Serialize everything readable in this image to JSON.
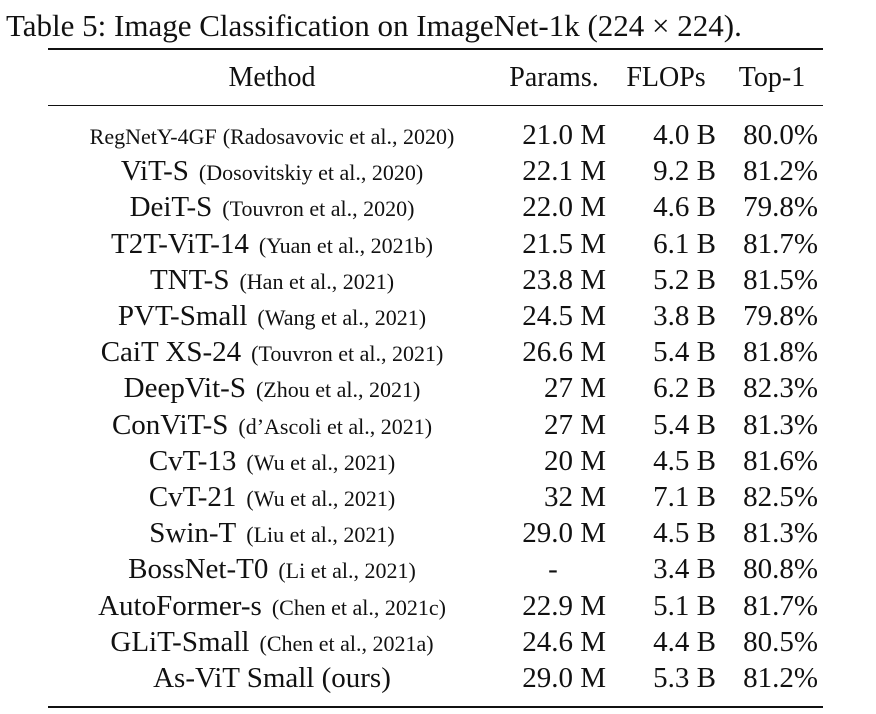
{
  "caption": "Table 5: Image Classification on ImageNet-1k (224 × 224).",
  "headers": {
    "method": "Method",
    "params": "Params.",
    "flops": "FLOPs",
    "top1": "Top-1"
  },
  "rows": [
    {
      "name": "RegNetY-4GF",
      "cite": "(Radosavovic et al., 2020)",
      "params": "21.0 M",
      "flops": "4.0 B",
      "top1": "80.0%"
    },
    {
      "name": "ViT-S",
      "cite": "(Dosovitskiy et al., 2020)",
      "params": "22.1 M",
      "flops": "9.2 B",
      "top1": "81.2%"
    },
    {
      "name": "DeiT-S",
      "cite": "(Touvron et al., 2020)",
      "params": "22.0 M",
      "flops": "4.6 B",
      "top1": "79.8%"
    },
    {
      "name": "T2T-ViT-14",
      "cite": "(Yuan et al., 2021b)",
      "params": "21.5 M",
      "flops": "6.1 B",
      "top1": "81.7%"
    },
    {
      "name": "TNT-S",
      "cite": "(Han et al., 2021)",
      "params": "23.8 M",
      "flops": "5.2 B",
      "top1": "81.5%"
    },
    {
      "name": "PVT-Small",
      "cite": "(Wang et al., 2021)",
      "params": "24.5 M",
      "flops": "3.8 B",
      "top1": "79.8%"
    },
    {
      "name": "CaiT XS-24",
      "cite": "(Touvron et al., 2021)",
      "params": "26.6 M",
      "flops": "5.4 B",
      "top1": "81.8%"
    },
    {
      "name": "DeepVit-S",
      "cite": "(Zhou et al., 2021)",
      "params": "27 M",
      "flops": "6.2 B",
      "top1": "82.3%"
    },
    {
      "name": "ConViT-S",
      "cite": "(d’Ascoli et al., 2021)",
      "params": "27 M",
      "flops": "5.4 B",
      "top1": "81.3%"
    },
    {
      "name": "CvT-13",
      "cite": "(Wu et al., 2021)",
      "params": "20 M",
      "flops": "4.5 B",
      "top1": "81.6%"
    },
    {
      "name": "CvT-21",
      "cite": "(Wu et al., 2021)",
      "params": "32 M",
      "flops": "7.1 B",
      "top1": "82.5%"
    },
    {
      "name": "Swin-T",
      "cite": "(Liu et al., 2021)",
      "params": "29.0 M",
      "flops": "4.5 B",
      "top1": "81.3%"
    },
    {
      "name": "BossNet-T0",
      "cite": "(Li et al., 2021)",
      "params": "-",
      "flops": "3.4 B",
      "top1": "80.8%"
    },
    {
      "name": "AutoFormer-s",
      "cite": "(Chen et al., 2021c)",
      "params": "22.9 M",
      "flops": "5.1 B",
      "top1": "81.7%"
    },
    {
      "name": "GLiT-Small",
      "cite": "(Chen et al., 2021a)",
      "params": "24.6 M",
      "flops": "4.4 B",
      "top1": "80.5%"
    },
    {
      "name": "As-ViT Small (ours)",
      "cite": "",
      "params": "29.0 M",
      "flops": "5.3 B",
      "top1": "81.2%"
    }
  ]
}
